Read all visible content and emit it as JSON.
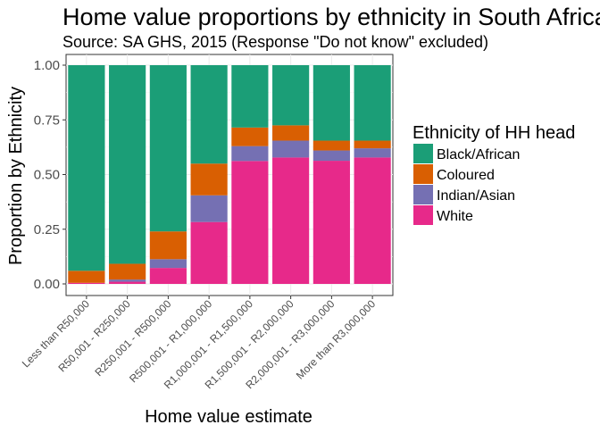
{
  "chart_data": {
    "type": "bar",
    "stacked": true,
    "title": "Home value proportions by ethnicity in South Africa",
    "subtitle": "Source: SA GHS, 2015 (Response \"Do not know\" excluded)",
    "xlabel": "Home value estimate",
    "ylabel": "Proportion by Ethnicity",
    "ylim": [
      0,
      1
    ],
    "yticks": [
      "0.00",
      "0.25",
      "0.50",
      "0.75",
      "1.00"
    ],
    "ytick_values": [
      0,
      0.25,
      0.5,
      0.75,
      1.0
    ],
    "grid": true,
    "legend_position": "right",
    "legend_title": "Ethnicity of HH head",
    "categories": [
      "Less than R50,000",
      "R50,001 - R250,000",
      "R250,001 - R500,000",
      "R500,001 - R1,000,000",
      "R1,000,001 - R1,500,000",
      "R1,500,001 - R2,000,000",
      "R2,000,001 - R3,000,000",
      "More than R3,000,000"
    ],
    "series": [
      {
        "name": "Black/African",
        "color": "#1B9E77",
        "values": [
          0.94,
          0.908,
          0.76,
          0.45,
          0.285,
          0.275,
          0.345,
          0.345
        ]
      },
      {
        "name": "Coloured",
        "color": "#D95F02",
        "values": [
          0.055,
          0.072,
          0.127,
          0.145,
          0.085,
          0.07,
          0.045,
          0.035
        ]
      },
      {
        "name": "Indian/Asian",
        "color": "#7570B3",
        "values": [
          0.0,
          0.01,
          0.04,
          0.122,
          0.068,
          0.077,
          0.047,
          0.042
        ]
      },
      {
        "name": "White",
        "color": "#E7298A",
        "values": [
          0.005,
          0.01,
          0.073,
          0.283,
          0.562,
          0.578,
          0.563,
          0.578
        ]
      }
    ],
    "stack_order_bottom_to_top": [
      "White",
      "Indian/Asian",
      "Coloured",
      "Black/African"
    ]
  }
}
